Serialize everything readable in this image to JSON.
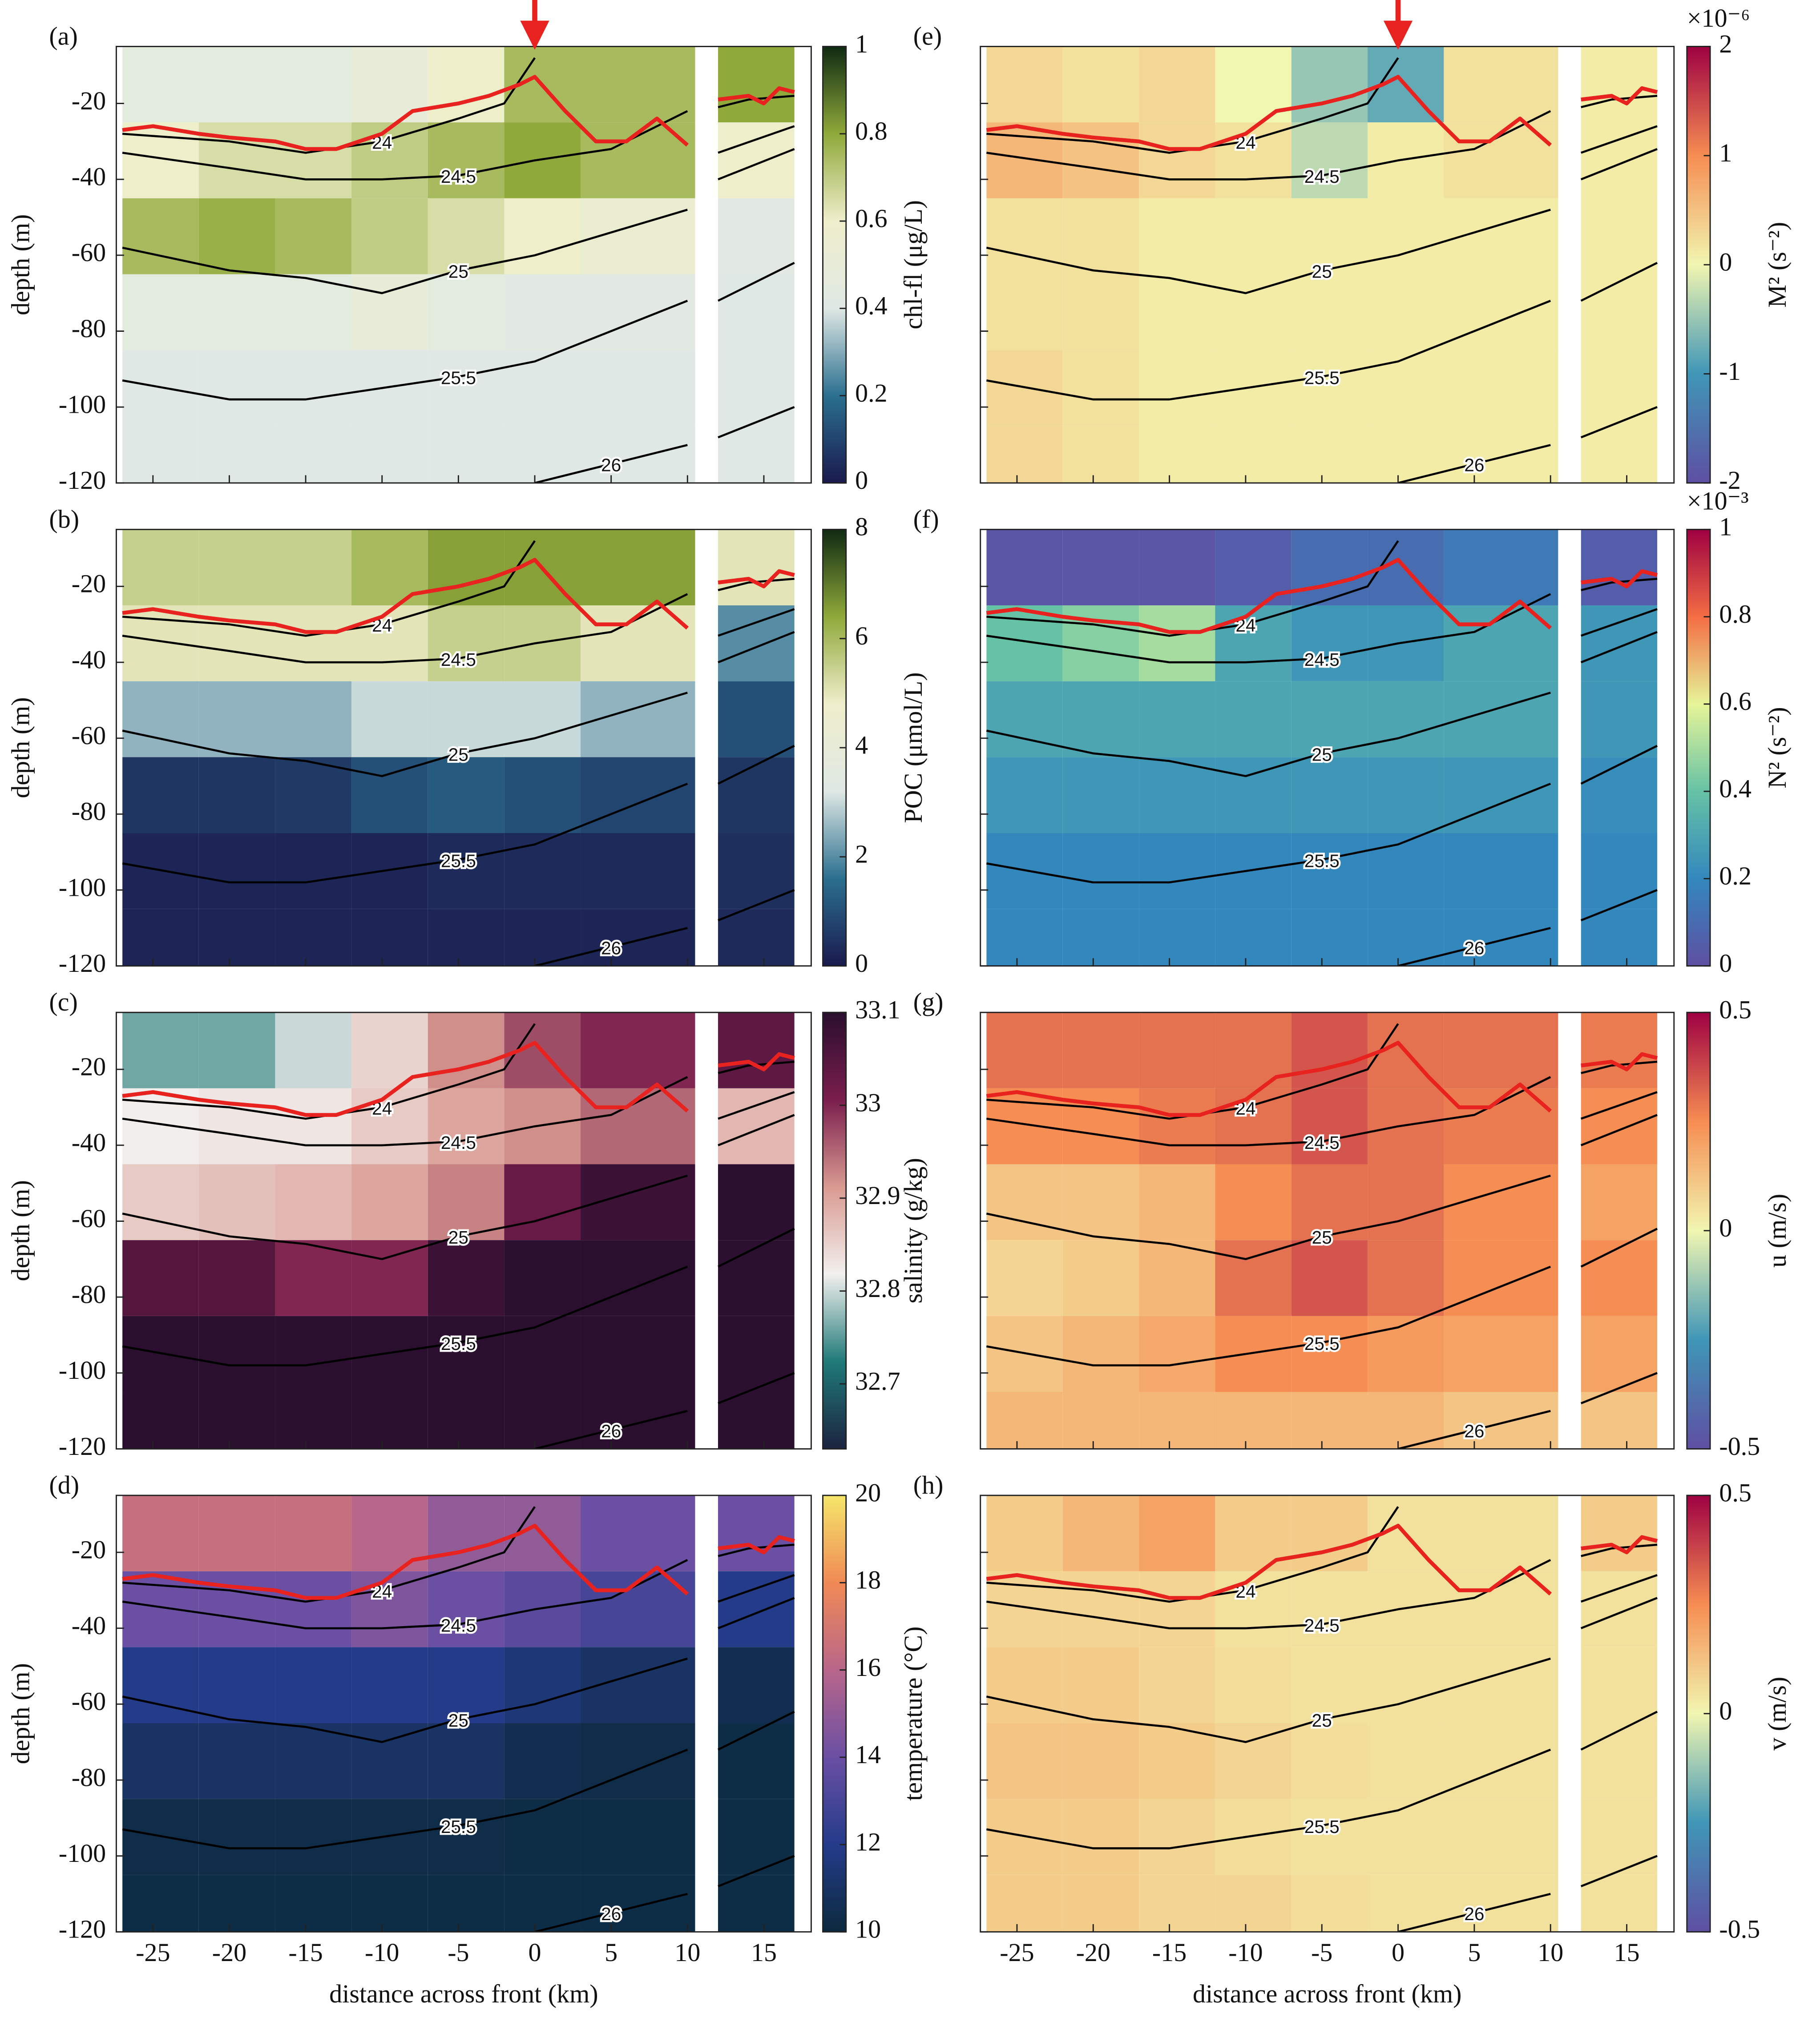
{
  "chart_data": [
    {
      "type": "heatmap",
      "panel": "(a)",
      "colorbar_label": "chl-fl (μg/L)",
      "clim": [
        0,
        1
      ],
      "cticks": [
        0,
        0.2,
        0.4,
        0.6,
        0.8,
        1
      ],
      "colormap": [
        "#1a1a4e",
        "#2a6f8f",
        "#dfe8e4",
        "#efeecb",
        "#8fa93a",
        "#0f2a12"
      ],
      "z": [
        [
          0.45,
          0.45,
          0.45,
          0.5,
          0.6,
          0.75,
          0.75,
          0.8
        ],
        [
          0.6,
          0.65,
          0.65,
          0.7,
          0.75,
          0.8,
          0.75,
          0.6
        ],
        [
          0.75,
          0.78,
          0.75,
          0.7,
          0.65,
          0.6,
          0.55,
          0.42
        ],
        [
          0.45,
          0.45,
          0.45,
          0.5,
          0.45,
          0.42,
          0.42,
          0.4
        ],
        [
          0.4,
          0.4,
          0.4,
          0.4,
          0.4,
          0.4,
          0.4,
          0.4
        ],
        [
          0.4,
          0.4,
          0.4,
          0.4,
          0.4,
          0.4,
          0.4,
          0.4
        ]
      ]
    },
    {
      "type": "heatmap",
      "panel": "(b)",
      "colorbar_label": "POC (μmol/L)",
      "clim": [
        0,
        8
      ],
      "cticks": [
        0,
        2,
        4,
        6,
        8
      ],
      "colormap": [
        "#1a1a4e",
        "#2a6f8f",
        "#dfe8e4",
        "#efeecb",
        "#8fa93a",
        "#0f2a12"
      ],
      "z": [
        [
          5.5,
          5.5,
          5.5,
          6,
          6.5,
          6.5,
          6.5,
          5
        ],
        [
          5,
          5,
          5,
          5,
          5.5,
          5.5,
          5,
          2
        ],
        [
          2.5,
          2.5,
          2.5,
          3,
          3,
          3,
          2.5,
          1
        ],
        [
          0.5,
          0.5,
          0.6,
          1,
          1.2,
          1,
          0.8,
          0.5
        ],
        [
          0.2,
          0.2,
          0.2,
          0.2,
          0.3,
          0.3,
          0.3,
          0.4
        ],
        [
          0.2,
          0.2,
          0.2,
          0.2,
          0.2,
          0.2,
          0.2,
          0.3
        ]
      ]
    },
    {
      "type": "heatmap",
      "panel": "(c)",
      "colorbar_label": "salinity (g/kg)",
      "clim": [
        32.63,
        33.1
      ],
      "cticks": [
        32.7,
        32.8,
        32.9,
        33,
        33.1
      ],
      "colormap": [
        "#1c2340",
        "#1f7a78",
        "#f2f0ee",
        "#d99a91",
        "#7a1e4d",
        "#2a0f2e"
      ],
      "z": [
        [
          32.76,
          32.76,
          32.8,
          32.85,
          32.92,
          32.97,
          33.0,
          33.04
        ],
        [
          32.82,
          32.83,
          32.83,
          32.86,
          32.9,
          32.92,
          32.95,
          32.88
        ],
        [
          32.86,
          32.87,
          32.88,
          32.9,
          32.93,
          33.03,
          33.08,
          33.1
        ],
        [
          33.05,
          33.05,
          33.0,
          33.0,
          33.08,
          33.1,
          33.1,
          33.1
        ],
        [
          33.1,
          33.1,
          33.1,
          33.1,
          33.1,
          33.1,
          33.1,
          33.1
        ],
        [
          33.1,
          33.1,
          33.1,
          33.1,
          33.1,
          33.1,
          33.1,
          33.1
        ]
      ]
    },
    {
      "type": "heatmap",
      "panel": "(d)",
      "colorbar_label": "temperature (°C)",
      "clim": [
        10,
        20
      ],
      "cticks": [
        10,
        12,
        14,
        16,
        18,
        20
      ],
      "colormap": [
        "#0b2a3d",
        "#243b8a",
        "#6a4fa3",
        "#b8668a",
        "#f08a55",
        "#f5e66a"
      ],
      "z": [
        [
          16.5,
          16.5,
          16.5,
          16,
          15,
          15,
          14,
          14
        ],
        [
          14,
          14,
          14,
          14.5,
          14,
          13.5,
          13,
          12
        ],
        [
          12,
          12,
          12,
          12,
          12,
          11.5,
          11,
          10.5
        ],
        [
          11,
          11,
          11,
          11,
          11,
          10.5,
          10.3,
          10.2
        ],
        [
          10.3,
          10.3,
          10.3,
          10.3,
          10.3,
          10.2,
          10.2,
          10.2
        ],
        [
          10.2,
          10.2,
          10.2,
          10.2,
          10.2,
          10.2,
          10.2,
          10.2
        ]
      ]
    },
    {
      "type": "heatmap",
      "panel": "(e)",
      "colorbar_label": "M² (s⁻²)",
      "scale_label": "×10⁻⁶",
      "clim": [
        -2,
        2
      ],
      "cticks": [
        -2,
        -1,
        0,
        1,
        2
      ],
      "colormap": [
        "#5e4fa2",
        "#3f96b7",
        "#f1f6b0",
        "#f68d52",
        "#9e0142"
      ],
      "z": [
        [
          0.3,
          0.2,
          0.3,
          0,
          -0.5,
          -0.8,
          0.2,
          0.1
        ],
        [
          0.6,
          0.5,
          0.3,
          0.2,
          -0.3,
          0.1,
          0.2,
          0.1
        ],
        [
          0.2,
          0.2,
          0.1,
          0.1,
          0.1,
          0.1,
          0.1,
          0.1
        ],
        [
          0.2,
          0.2,
          0.1,
          0.1,
          0.1,
          0.1,
          0.1,
          0.1
        ],
        [
          0.3,
          0.2,
          0.1,
          0.1,
          0.1,
          0.1,
          0.1,
          0.1
        ],
        [
          0.3,
          0.2,
          0.1,
          0.1,
          0.1,
          0.1,
          0.1,
          0.1
        ]
      ]
    },
    {
      "type": "heatmap",
      "panel": "(f)",
      "colorbar_label": "N² (s⁻²)",
      "scale_label": "×10⁻³",
      "clim": [
        0,
        1
      ],
      "cticks": [
        0,
        0.2,
        0.4,
        0.6,
        0.8,
        1
      ],
      "colormap": [
        "#5e4fa2",
        "#3288bd",
        "#66c2a5",
        "#e6f598",
        "#f46d43",
        "#9e0142"
      ],
      "z": [
        [
          0.02,
          0.02,
          0.02,
          0.05,
          0.1,
          0.1,
          0.15,
          0.05
        ],
        [
          0.4,
          0.45,
          0.5,
          0.3,
          0.25,
          0.25,
          0.3,
          0.25
        ],
        [
          0.3,
          0.3,
          0.3,
          0.3,
          0.3,
          0.3,
          0.3,
          0.25
        ],
        [
          0.25,
          0.25,
          0.25,
          0.25,
          0.25,
          0.25,
          0.25,
          0.22
        ],
        [
          0.2,
          0.2,
          0.2,
          0.2,
          0.2,
          0.2,
          0.2,
          0.2
        ],
        [
          0.2,
          0.2,
          0.2,
          0.2,
          0.2,
          0.2,
          0.2,
          0.2
        ]
      ]
    },
    {
      "type": "heatmap",
      "panel": "(g)",
      "colorbar_label": "u (m/s)",
      "clim": [
        -0.5,
        0.5
      ],
      "cticks": [
        -0.5,
        0,
        0.5
      ],
      "colormap": [
        "#5e4fa2",
        "#3f96b7",
        "#f1f6b0",
        "#f68d52",
        "#9e0142"
      ],
      "z": [
        [
          0.3,
          0.3,
          0.3,
          0.3,
          0.35,
          0.3,
          0.3,
          0.28
        ],
        [
          0.25,
          0.25,
          0.28,
          0.3,
          0.35,
          0.3,
          0.28,
          0.25
        ],
        [
          0.12,
          0.12,
          0.15,
          0.25,
          0.3,
          0.3,
          0.25,
          0.2
        ],
        [
          0.08,
          0.1,
          0.15,
          0.3,
          0.35,
          0.3,
          0.25,
          0.25
        ],
        [
          0.12,
          0.15,
          0.18,
          0.25,
          0.25,
          0.22,
          0.2,
          0.2
        ],
        [
          0.15,
          0.15,
          0.15,
          0.15,
          0.15,
          0.15,
          0.12,
          0.12
        ]
      ]
    },
    {
      "type": "heatmap",
      "panel": "(h)",
      "colorbar_label": "v (m/s)",
      "clim": [
        -0.5,
        0.5
      ],
      "cticks": [
        -0.5,
        0,
        0.5
      ],
      "colormap": [
        "#5e4fa2",
        "#3f96b7",
        "#f1f6b0",
        "#f68d52",
        "#9e0142"
      ],
      "z": [
        [
          0.1,
          0.15,
          0.2,
          0.1,
          0.1,
          0.05,
          0.05,
          0.1
        ],
        [
          0.08,
          0.08,
          0.08,
          0.05,
          0.05,
          0.05,
          0.05,
          0.05
        ],
        [
          0.1,
          0.1,
          0.08,
          0.06,
          0.05,
          0.05,
          0.05,
          0.05
        ],
        [
          0.12,
          0.12,
          0.1,
          0.08,
          0.06,
          0.05,
          0.05,
          0.05
        ],
        [
          0.1,
          0.1,
          0.08,
          0.06,
          0.05,
          0.05,
          0.05,
          0.05
        ],
        [
          0.1,
          0.1,
          0.08,
          0.08,
          0.06,
          0.05,
          0.05,
          0.05
        ]
      ]
    }
  ],
  "axes": {
    "xlim": [
      -27.4,
      18.1
    ],
    "ylim": [
      -120,
      -5
    ],
    "xticks": [
      -25,
      -20,
      -15,
      -10,
      -5,
      0,
      5,
      10,
      15
    ],
    "yticks": [
      -120,
      -100,
      -80,
      -60,
      -40,
      -20
    ],
    "columns": [
      [
        -27,
        -22
      ],
      [
        -22,
        -17
      ],
      [
        -17,
        -12
      ],
      [
        -12,
        -7
      ],
      [
        -7,
        -2
      ],
      [
        -2,
        3
      ],
      [
        3,
        10.5
      ],
      [
        12,
        17
      ]
    ],
    "depth_bins": [
      -5,
      -25,
      -45,
      -65,
      -85,
      -105,
      -120
    ],
    "y_label": "depth (m)",
    "x_label": "distance across front (km)"
  },
  "mixed_layer": {
    "color": "#e8231f",
    "x": [
      -27,
      -25,
      -22,
      -20,
      -17,
      -15,
      -13,
      -10,
      -8,
      -5,
      -3,
      -1,
      0,
      2,
      4,
      6,
      8,
      10,
      11,
      12,
      14,
      15,
      16,
      17
    ],
    "values": [
      -27,
      -26,
      -28,
      -29,
      -30,
      -32,
      -32,
      -28,
      -22,
      -20,
      -18,
      -15,
      -13,
      -22,
      -30,
      -30,
      -24,
      -31,
      null,
      -19,
      -18,
      -20,
      -16,
      -17
    ]
  },
  "contours": [
    {
      "level": 24,
      "x": [
        -27,
        -20,
        -15,
        -10,
        -5,
        -2,
        0,
        1,
        12,
        14,
        17
      ],
      "values": [
        -28,
        -30,
        -33,
        -30,
        -24,
        -20,
        -8,
        null,
        -21,
        -19,
        -18
      ]
    },
    {
      "level": 24.5,
      "x": [
        -27,
        -20,
        -15,
        -10,
        -5,
        0,
        5,
        10,
        11,
        12,
        17
      ],
      "values": [
        -33,
        -37,
        -40,
        -40,
        -39,
        -35,
        -32,
        -22,
        null,
        -33,
        -26
      ]
    },
    {
      "level": 25,
      "x": [
        -27,
        -20,
        -15,
        -10,
        -5,
        0,
        5,
        10,
        11,
        12,
        17
      ],
      "values": [
        -58,
        -64,
        -66,
        -70,
        -64,
        -60,
        -54,
        -48,
        null,
        -40,
        -32
      ]
    },
    {
      "level": 25.5,
      "x": [
        -27,
        -20,
        -15,
        -10,
        -5,
        0,
        5,
        10,
        11,
        12,
        17
      ],
      "values": [
        -93,
        -98,
        -98,
        -95,
        -92,
        -88,
        -80,
        -72,
        null,
        -72,
        -62
      ]
    },
    {
      "level": 26,
      "x": [
        0,
        5,
        10,
        11,
        12,
        17
      ],
      "values": [
        -120,
        -115,
        -110,
        null,
        -108,
        -100
      ]
    }
  ]
}
